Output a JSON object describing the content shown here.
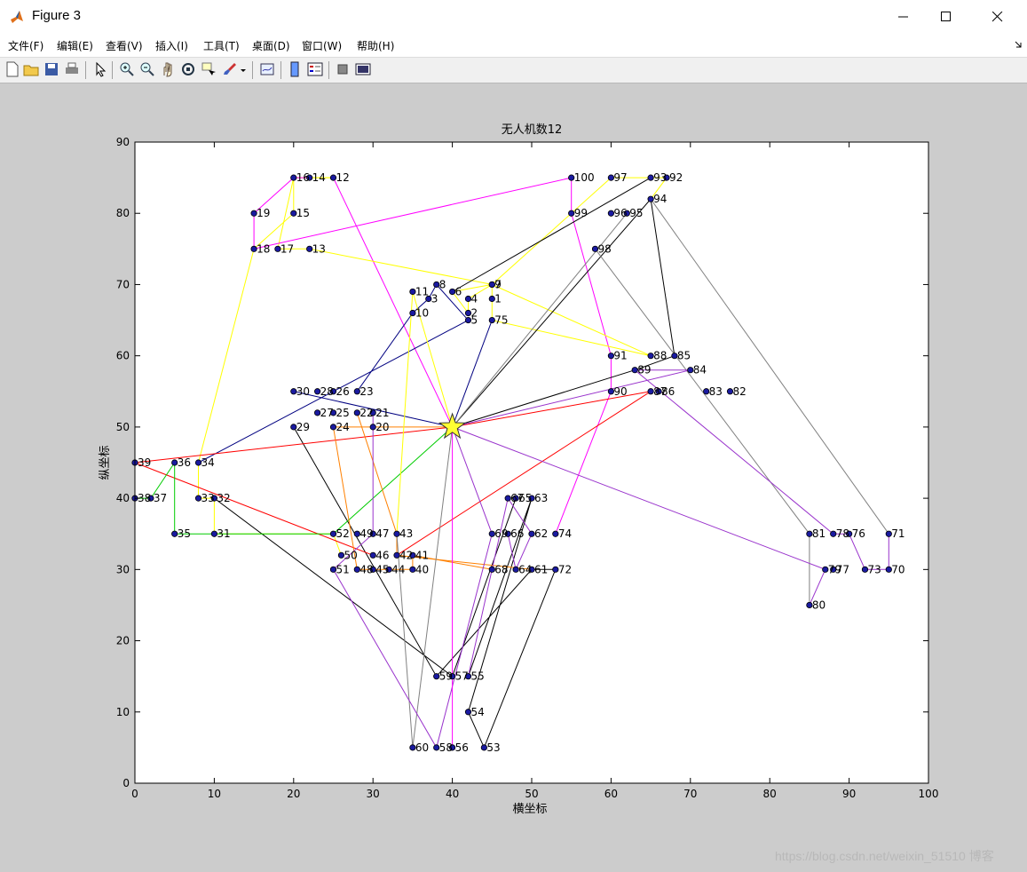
{
  "window": {
    "title": "Figure 3"
  },
  "menu": [
    "文件(F)",
    "编辑(E)",
    "查看(V)",
    "插入(I)",
    "工具(T)",
    "桌面(D)",
    "窗口(W)",
    "帮助(H)"
  ],
  "toolbar_icons": [
    "new-figure-icon",
    "open-file-icon",
    "save-icon",
    "print-icon",
    "pointer-icon",
    "zoom-in-icon",
    "zoom-out-icon",
    "pan-icon",
    "rotate-icon",
    "data-cursor-icon",
    "brush-icon",
    "brush-dropdown-icon",
    "link-plot-icon",
    "colorbar-icon",
    "legend-icon",
    "hide-plot-tools-icon",
    "show-plot-tools-icon"
  ],
  "watermark": "https://blog.csdn.net/weixin_51510 博客",
  "chart_data": {
    "type": "scatter",
    "title": "无人机数12",
    "xlabel": "横坐标",
    "ylabel": "纵坐标",
    "xlim": [
      0,
      100
    ],
    "ylim": [
      0,
      90
    ],
    "xticks": [
      0,
      10,
      20,
      30,
      40,
      50,
      60,
      70,
      80,
      90,
      100
    ],
    "yticks": [
      0,
      10,
      20,
      30,
      40,
      50,
      60,
      70,
      80,
      90
    ],
    "depot": {
      "x": 40,
      "y": 50,
      "marker": "yellow star"
    },
    "points": [
      {
        "id": "1",
        "x": 45,
        "y": 68
      },
      {
        "id": "2",
        "x": 42,
        "y": 66
      },
      {
        "id": "3",
        "x": 37,
        "y": 68
      },
      {
        "id": "4",
        "x": 42,
        "y": 68
      },
      {
        "id": "5",
        "x": 42,
        "y": 65
      },
      {
        "id": "6",
        "x": 40,
        "y": 69
      },
      {
        "id": "7",
        "x": 45,
        "y": 70
      },
      {
        "id": "8",
        "x": 38,
        "y": 70
      },
      {
        "id": "9",
        "x": 45,
        "y": 70
      },
      {
        "id": "10",
        "x": 35,
        "y": 66
      },
      {
        "id": "11",
        "x": 35,
        "y": 69
      },
      {
        "id": "12",
        "x": 25,
        "y": 85
      },
      {
        "id": "13",
        "x": 22,
        "y": 75
      },
      {
        "id": "14",
        "x": 22,
        "y": 85
      },
      {
        "id": "15",
        "x": 20,
        "y": 80
      },
      {
        "id": "16",
        "x": 20,
        "y": 85
      },
      {
        "id": "17",
        "x": 18,
        "y": 75
      },
      {
        "id": "18",
        "x": 15,
        "y": 75
      },
      {
        "id": "19",
        "x": 15,
        "y": 80
      },
      {
        "id": "20",
        "x": 30,
        "y": 50
      },
      {
        "id": "21",
        "x": 30,
        "y": 52
      },
      {
        "id": "22",
        "x": 28,
        "y": 52
      },
      {
        "id": "23",
        "x": 28,
        "y": 55
      },
      {
        "id": "24",
        "x": 25,
        "y": 50
      },
      {
        "id": "25",
        "x": 25,
        "y": 52
      },
      {
        "id": "26",
        "x": 25,
        "y": 55
      },
      {
        "id": "27",
        "x": 23,
        "y": 52
      },
      {
        "id": "28",
        "x": 23,
        "y": 55
      },
      {
        "id": "29",
        "x": 20,
        "y": 50
      },
      {
        "id": "30",
        "x": 20,
        "y": 55
      },
      {
        "id": "31",
        "x": 10,
        "y": 35
      },
      {
        "id": "32",
        "x": 10,
        "y": 40
      },
      {
        "id": "33",
        "x": 8,
        "y": 40
      },
      {
        "id": "34",
        "x": 8,
        "y": 45
      },
      {
        "id": "35",
        "x": 5,
        "y": 35
      },
      {
        "id": "36",
        "x": 5,
        "y": 45
      },
      {
        "id": "37",
        "x": 2,
        "y": 40
      },
      {
        "id": "38",
        "x": 0,
        "y": 40
      },
      {
        "id": "39",
        "x": 0,
        "y": 45
      },
      {
        "id": "40",
        "x": 35,
        "y": 30
      },
      {
        "id": "41",
        "x": 35,
        "y": 32
      },
      {
        "id": "42",
        "x": 33,
        "y": 32
      },
      {
        "id": "43",
        "x": 33,
        "y": 35
      },
      {
        "id": "44",
        "x": 32,
        "y": 30
      },
      {
        "id": "45",
        "x": 30,
        "y": 30
      },
      {
        "id": "46",
        "x": 30,
        "y": 32
      },
      {
        "id": "47",
        "x": 30,
        "y": 35
      },
      {
        "id": "48",
        "x": 28,
        "y": 30
      },
      {
        "id": "49",
        "x": 28,
        "y": 35
      },
      {
        "id": "50",
        "x": 26,
        "y": 32
      },
      {
        "id": "51",
        "x": 25,
        "y": 30
      },
      {
        "id": "52",
        "x": 25,
        "y": 35
      },
      {
        "id": "53",
        "x": 44,
        "y": 5
      },
      {
        "id": "54",
        "x": 42,
        "y": 10
      },
      {
        "id": "55",
        "x": 42,
        "y": 15
      },
      {
        "id": "56",
        "x": 40,
        "y": 5
      },
      {
        "id": "57",
        "x": 40,
        "y": 15
      },
      {
        "id": "58",
        "x": 38,
        "y": 5
      },
      {
        "id": "59",
        "x": 38,
        "y": 15
      },
      {
        "id": "60",
        "x": 35,
        "y": 5
      },
      {
        "id": "61",
        "x": 50,
        "y": 30
      },
      {
        "id": "62",
        "x": 50,
        "y": 35
      },
      {
        "id": "63",
        "x": 50,
        "y": 40
      },
      {
        "id": "64",
        "x": 48,
        "y": 30
      },
      {
        "id": "65",
        "x": 48,
        "y": 40
      },
      {
        "id": "66",
        "x": 47,
        "y": 35
      },
      {
        "id": "67",
        "x": 47,
        "y": 40
      },
      {
        "id": "68",
        "x": 45,
        "y": 30
      },
      {
        "id": "69",
        "x": 45,
        "y": 35
      },
      {
        "id": "70",
        "x": 95,
        "y": 30
      },
      {
        "id": "71",
        "x": 95,
        "y": 35
      },
      {
        "id": "72",
        "x": 53,
        "y": 30
      },
      {
        "id": "73",
        "x": 92,
        "y": 30
      },
      {
        "id": "74",
        "x": 53,
        "y": 35
      },
      {
        "id": "75",
        "x": 45,
        "y": 65
      },
      {
        "id": "76",
        "x": 90,
        "y": 35
      },
      {
        "id": "77",
        "x": 88,
        "y": 30
      },
      {
        "id": "78",
        "x": 88,
        "y": 35
      },
      {
        "id": "79",
        "x": 87,
        "y": 30
      },
      {
        "id": "80",
        "x": 85,
        "y": 25
      },
      {
        "id": "81",
        "x": 85,
        "y": 35
      },
      {
        "id": "82",
        "x": 75,
        "y": 55
      },
      {
        "id": "83",
        "x": 72,
        "y": 55
      },
      {
        "id": "84",
        "x": 70,
        "y": 58
      },
      {
        "id": "85",
        "x": 68,
        "y": 60
      },
      {
        "id": "86",
        "x": 66,
        "y": 55
      },
      {
        "id": "87",
        "x": 65,
        "y": 55
      },
      {
        "id": "88",
        "x": 65,
        "y": 60
      },
      {
        "id": "89",
        "x": 63,
        "y": 58
      },
      {
        "id": "90",
        "x": 60,
        "y": 55
      },
      {
        "id": "91",
        "x": 60,
        "y": 60
      },
      {
        "id": "92",
        "x": 67,
        "y": 85
      },
      {
        "id": "93",
        "x": 65,
        "y": 85
      },
      {
        "id": "94",
        "x": 65,
        "y": 82
      },
      {
        "id": "95",
        "x": 62,
        "y": 80
      },
      {
        "id": "96",
        "x": 60,
        "y": 80
      },
      {
        "id": "97",
        "x": 60,
        "y": 85
      },
      {
        "id": "98",
        "x": 58,
        "y": 75
      },
      {
        "id": "99",
        "x": 55,
        "y": 80
      },
      {
        "id": "100",
        "x": 55,
        "y": 85
      }
    ],
    "routes": [
      {
        "color": "#ffff00",
        "stops": [
          "13",
          "17",
          "16",
          "12"
        ]
      },
      {
        "color": "#ffff00",
        "stops": [
          "12",
          "16",
          "15",
          "18",
          "34",
          "33",
          "32",
          "31",
          "52",
          "50"
        ]
      },
      {
        "color": "#ff00ff",
        "stops": [
          "14",
          "16",
          "19",
          "18",
          "100",
          "99",
          "91",
          "90",
          "74"
        ]
      },
      {
        "color": "#ff00ff",
        "stops": [
          "12",
          "depot"
        ]
      },
      {
        "color": "#ffff00",
        "stops": [
          "13",
          "7",
          "88",
          "75",
          "9",
          "4",
          "2",
          "6",
          "7",
          "97",
          "93",
          "92",
          "94"
        ]
      },
      {
        "color": "#000080",
        "stops": [
          "30",
          "depot"
        ]
      },
      {
        "color": "#000080",
        "stops": [
          "depot",
          "75"
        ]
      },
      {
        "color": "#000080",
        "stops": [
          "34",
          "5",
          "8",
          "3",
          "10",
          "23"
        ]
      },
      {
        "color": "#000000",
        "stops": [
          "depot",
          "94",
          "85",
          "89",
          "depot"
        ]
      },
      {
        "color": "#000000",
        "stops": [
          "6",
          "93"
        ]
      },
      {
        "color": "#000000",
        "stops": [
          "29",
          "59",
          "61",
          "72",
          "53",
          "54",
          "63",
          "55"
        ]
      },
      {
        "color": "#000000",
        "stops": [
          "32",
          "57",
          "65"
        ]
      },
      {
        "color": "#ff0000",
        "stops": [
          "39",
          "depot"
        ]
      },
      {
        "color": "#ff0000",
        "stops": [
          "39",
          "46"
        ]
      },
      {
        "color": "#ff0000",
        "stops": [
          "depot",
          "87",
          "42"
        ]
      },
      {
        "color": "#00cc00",
        "stops": [
          "39",
          "38",
          "37",
          "36",
          "35",
          "31",
          "52",
          "depot"
        ]
      },
      {
        "color": "#ff8000",
        "stops": [
          "24",
          "depot"
        ]
      },
      {
        "color": "#ff8000",
        "stops": [
          "24",
          "48",
          "45",
          "44",
          "40",
          "41",
          "68"
        ]
      },
      {
        "color": "#ff8000",
        "stops": [
          "22",
          "43",
          "42",
          "61"
        ]
      },
      {
        "color": "#808080",
        "stops": [
          "depot",
          "60",
          "43"
        ]
      },
      {
        "color": "#808080",
        "stops": [
          "depot",
          "95"
        ]
      },
      {
        "color": "#808080",
        "stops": [
          "98",
          "81",
          "80"
        ]
      },
      {
        "color": "#808080",
        "stops": [
          "94",
          "71"
        ]
      },
      {
        "color": "#9933cc",
        "stops": [
          "depot",
          "84",
          "89",
          "78",
          "76",
          "73",
          "70",
          "71"
        ]
      },
      {
        "color": "#9933cc",
        "stops": [
          "depot",
          "79",
          "80"
        ]
      },
      {
        "color": "#9933cc",
        "stops": [
          "21",
          "47",
          "51",
          "58",
          "69",
          "depot"
        ]
      },
      {
        "color": "#9933cc",
        "stops": [
          "55",
          "67",
          "62",
          "64",
          "66"
        ]
      },
      {
        "color": "#ff00ff",
        "stops": [
          "depot",
          "56"
        ]
      },
      {
        "color": "#ffff00",
        "stops": [
          "depot",
          "11",
          "43"
        ]
      }
    ]
  }
}
